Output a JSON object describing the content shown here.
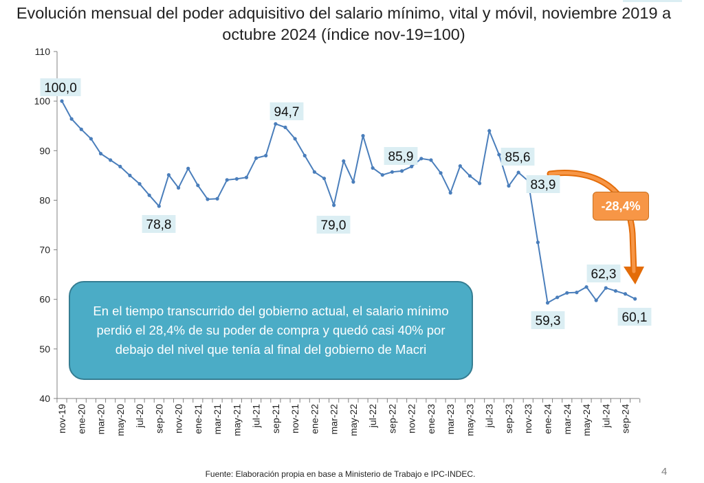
{
  "chart_data": {
    "type": "line",
    "title": "Evolución mensual del poder adquisitivo del salario mínimo, vital y móvil, noviembre 2019 a octubre 2024 (índice nov-19=100)",
    "ylim": [
      40,
      110
    ],
    "yticks": [
      "40",
      "50",
      "60",
      "70",
      "80",
      "90",
      "100",
      "110"
    ],
    "x_labels": [
      "nov-19",
      "ene-20",
      "mar-20",
      "may-20",
      "jul-20",
      "sep-20",
      "nov-20",
      "ene-21",
      "mar-21",
      "may-21",
      "jul-21",
      "sep-21",
      "nov-21",
      "ene-22",
      "mar-22",
      "may-22",
      "jul-22",
      "sep-22",
      "nov-22",
      "ene-23",
      "mar-23",
      "may-23",
      "jul-23",
      "sep-23",
      "nov-23",
      "ene-24",
      "mar-24",
      "may-24",
      "jul-24",
      "sep-24"
    ],
    "series": [
      {
        "color": "#4a7ebb",
        "values": [
          100.0,
          96.4,
          94.3,
          92.4,
          89.4,
          88.1,
          86.8,
          85.0,
          83.3,
          81.0,
          78.8,
          85.1,
          82.5,
          86.4,
          83.0,
          80.2,
          80.3,
          84.1,
          84.3,
          84.6,
          88.5,
          89.0,
          95.4,
          94.7,
          92.4,
          89.0,
          85.7,
          84.4,
          79.0,
          87.9,
          83.7,
          93.0,
          86.5,
          85.1,
          85.7,
          85.9,
          86.8,
          88.4,
          88.1,
          85.5,
          81.5,
          86.9,
          84.9,
          83.4,
          94.0,
          89.2,
          82.9,
          85.6,
          83.9,
          71.5,
          59.3,
          60.4,
          61.3,
          61.4,
          62.5,
          59.8,
          62.3,
          61.7,
          61.1,
          60.1
        ]
      }
    ],
    "data_labels": [
      {
        "text": "100,0"
      },
      {
        "text": "78,8"
      },
      {
        "text": "94,7"
      },
      {
        "text": "79,0"
      },
      {
        "text": "85,9"
      },
      {
        "text": "85,6"
      },
      {
        "text": "83,9"
      },
      {
        "text": "59,3"
      },
      {
        "text": "62,3"
      },
      {
        "text": "60,1"
      }
    ],
    "annotation_change": "-28,4%",
    "callout_text": "En el tiempo transcurrido del gobierno actual, el salario mínimo perdió el 28,4% de su poder de compra y quedó casi 40% por debajo del nivel que tenía al final del gobierno de Macri",
    "source": "Fuente: Elaboración propia en base a Ministerio de Trabajo e IPC-INDEC.",
    "page_number": "4",
    "grid": false,
    "colors": {
      "line": "#4a7ebb",
      "callout": "#4bacc6",
      "badge": "#f79646",
      "label_bg": "#dbeef3"
    }
  }
}
